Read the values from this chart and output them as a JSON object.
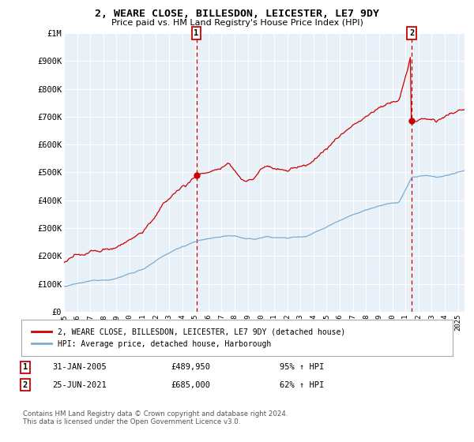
{
  "title": "2, WEARE CLOSE, BILLESDON, LEICESTER, LE7 9DY",
  "subtitle": "Price paid vs. HM Land Registry's House Price Index (HPI)",
  "ylim": [
    0,
    1000000
  ],
  "yticks": [
    0,
    100000,
    200000,
    300000,
    400000,
    500000,
    600000,
    700000,
    800000,
    900000,
    1000000
  ],
  "ytick_labels": [
    "£0",
    "£100K",
    "£200K",
    "£300K",
    "£400K",
    "£500K",
    "£600K",
    "£700K",
    "£800K",
    "£900K",
    "£1M"
  ],
  "xlim_start": 1995.0,
  "xlim_end": 2025.5,
  "hpi_color": "#7aadd4",
  "price_color": "#cc0000",
  "sale1_x": 2005.08,
  "sale1_y": 489950,
  "sale2_x": 2021.48,
  "sale2_y": 685000,
  "vline_color": "#cc0000",
  "legend_label_price": "2, WEARE CLOSE, BILLESDON, LEICESTER, LE7 9DY (detached house)",
  "legend_label_hpi": "HPI: Average price, detached house, Harborough",
  "background_color": "#ffffff",
  "plot_bg_color": "#e8f0f8",
  "grid_color": "#ffffff",
  "footer": "Contains HM Land Registry data © Crown copyright and database right 2024.\nThis data is licensed under the Open Government Licence v3.0."
}
